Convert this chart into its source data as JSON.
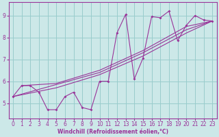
{
  "xlabel": "Windchill (Refroidissement éolien,°C)",
  "bg_color": "#cce8e8",
  "grid_color": "#99cccc",
  "line_color": "#993399",
  "spine_color": "#993399",
  "xlim": [
    -0.5,
    23.5
  ],
  "ylim": [
    4.3,
    9.6
  ],
  "yticks": [
    5,
    6,
    7,
    8,
    9
  ],
  "xticks": [
    0,
    1,
    2,
    3,
    4,
    5,
    6,
    7,
    8,
    9,
    10,
    11,
    12,
    13,
    14,
    15,
    16,
    17,
    18,
    19,
    20,
    21,
    22,
    23
  ],
  "main_series": [
    [
      0,
      5.3
    ],
    [
      1,
      5.8
    ],
    [
      2,
      5.8
    ],
    [
      3,
      5.5
    ],
    [
      4,
      4.7
    ],
    [
      5,
      4.7
    ],
    [
      6,
      5.3
    ],
    [
      7,
      5.5
    ],
    [
      8,
      4.8
    ],
    [
      9,
      4.7
    ],
    [
      10,
      6.0
    ],
    [
      11,
      6.0
    ],
    [
      12,
      8.2
    ],
    [
      13,
      9.05
    ],
    [
      14,
      6.1
    ],
    [
      15,
      7.05
    ],
    [
      16,
      8.95
    ],
    [
      17,
      8.9
    ],
    [
      18,
      9.2
    ],
    [
      19,
      7.85
    ],
    [
      20,
      8.55
    ],
    [
      21,
      9.0
    ],
    [
      22,
      8.8
    ],
    [
      23,
      8.75
    ]
  ],
  "smooth_lines": [
    [
      [
        0,
        5.3
      ],
      [
        5,
        5.85
      ],
      [
        10,
        6.4
      ],
      [
        15,
        7.3
      ],
      [
        20,
        8.35
      ],
      [
        23,
        8.75
      ]
    ],
    [
      [
        0,
        5.3
      ],
      [
        5,
        5.7
      ],
      [
        10,
        6.3
      ],
      [
        15,
        7.15
      ],
      [
        20,
        8.2
      ],
      [
        23,
        8.75
      ]
    ],
    [
      [
        1,
        5.8
      ],
      [
        5,
        5.9
      ],
      [
        10,
        6.5
      ],
      [
        15,
        7.4
      ],
      [
        20,
        8.5
      ],
      [
        23,
        8.75
      ]
    ]
  ]
}
